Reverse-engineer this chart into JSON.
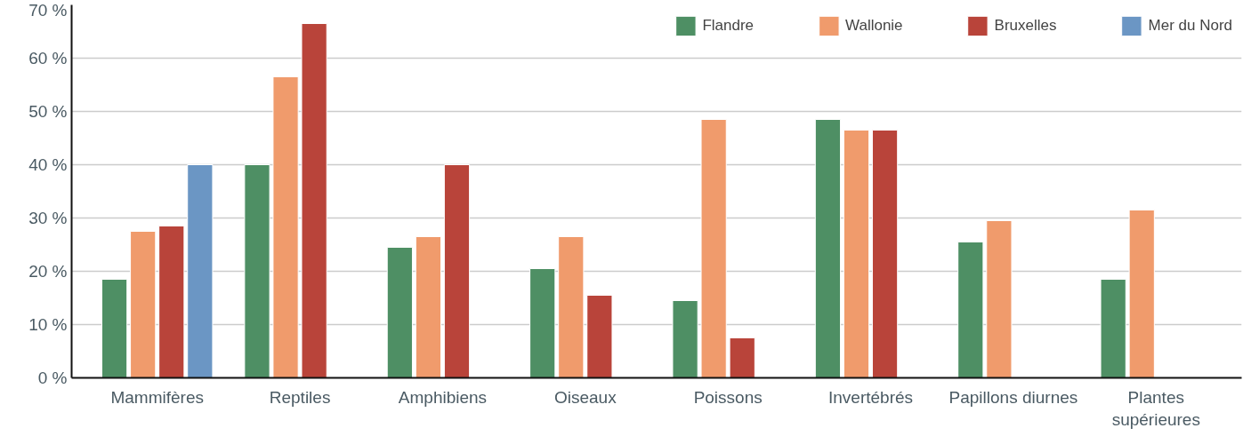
{
  "chart_data": {
    "type": "bar",
    "categories": [
      "Mammifères",
      "Reptiles",
      "Amphibiens",
      "Oiseaux",
      "Poissons",
      "Invertébrés",
      "Papillons diurnes",
      "Plantes supérieures"
    ],
    "series": [
      {
        "name": "Flandre",
        "color": "#4e8f64",
        "values": [
          18.5,
          40,
          24.5,
          20.5,
          14.5,
          48.5,
          25.5,
          18.5
        ]
      },
      {
        "name": "Wallonie",
        "color": "#f09b6c",
        "values": [
          27.5,
          56.5,
          26.5,
          26.5,
          48.5,
          46.5,
          29.5,
          31.5
        ]
      },
      {
        "name": "Bruxelles",
        "color": "#b9443a",
        "values": [
          28.5,
          66.5,
          40,
          15.5,
          7.5,
          46.5,
          null,
          null
        ]
      },
      {
        "name": "Mer du Nord",
        "color": "#6b96c4",
        "values": [
          40,
          null,
          null,
          null,
          null,
          null,
          null,
          null
        ]
      }
    ],
    "ylim": [
      0,
      70
    ],
    "yticks": [
      {
        "value": 0,
        "label": "0 %"
      },
      {
        "value": 10,
        "label": "10 %"
      },
      {
        "value": 20,
        "label": "20 %"
      },
      {
        "value": 30,
        "label": "30 %"
      },
      {
        "value": 40,
        "label": "40 %"
      },
      {
        "value": 50,
        "label": "50 %"
      },
      {
        "value": 60,
        "label": "60 %"
      },
      {
        "value": 70,
        "label": "70 %"
      }
    ],
    "grid": "y",
    "legend": "top right"
  }
}
